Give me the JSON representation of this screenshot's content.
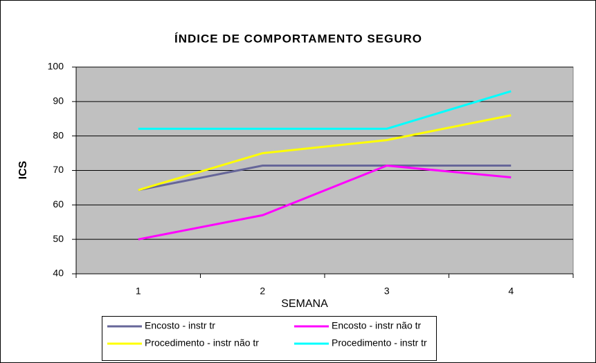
{
  "chart_data": {
    "type": "line",
    "title": "ÍNDICE DE COMPORTAMENTO SEGURO",
    "x_label": "SEMANA",
    "y_label": "ICS",
    "categories": [
      "1",
      "2",
      "3",
      "4"
    ],
    "series": [
      {
        "name": "Encosto - instr tr",
        "color": "#666699",
        "values": [
          64.3,
          71.4,
          71.4,
          71.4
        ]
      },
      {
        "name": "Encosto - instr não tr",
        "color": "#ff00ff",
        "values": [
          50,
          57,
          71.4,
          68
        ]
      },
      {
        "name": "Procedimento - instr não tr",
        "color": "#ffff00",
        "values": [
          64.3,
          75,
          78.8,
          86
        ]
      },
      {
        "name": "Procedimento - instr tr",
        "color": "#00ffff",
        "values": [
          82.1,
          82.1,
          82.1,
          93
        ]
      }
    ],
    "ylim": [
      40,
      100
    ],
    "yticks": [
      40,
      50,
      60,
      70,
      80,
      90,
      100
    ],
    "grid": true
  }
}
